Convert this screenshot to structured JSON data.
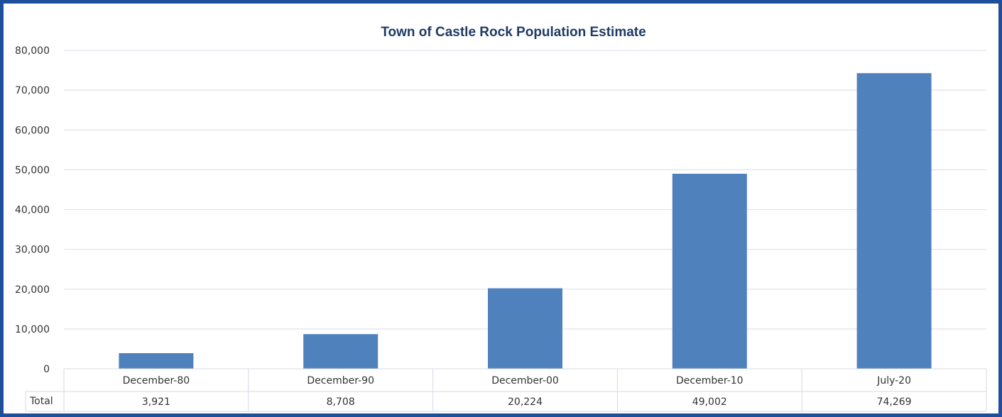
{
  "chart_data": {
    "type": "bar",
    "title": "Town of Castle Rock Population Estimate",
    "categories": [
      "December-80",
      "December-90",
      "December-00",
      "December-10",
      "July-20"
    ],
    "series": [
      {
        "name": "Total",
        "values": [
          3921,
          8708,
          20224,
          49002,
          74269
        ]
      }
    ],
    "data_table": {
      "row_label": "Total",
      "values": [
        "3,921",
        "8,708",
        "20,224",
        "49,002",
        "74,269"
      ]
    },
    "ylim": [
      0,
      80000
    ],
    "yticks": [
      {
        "value": 0,
        "label": "0"
      },
      {
        "value": 10000,
        "label": "10,000"
      },
      {
        "value": 20000,
        "label": "20,000"
      },
      {
        "value": 30000,
        "label": "30,000"
      },
      {
        "value": 40000,
        "label": "40,000"
      },
      {
        "value": 50000,
        "label": "50,000"
      },
      {
        "value": 60000,
        "label": "60,000"
      },
      {
        "value": 70000,
        "label": "70,000"
      },
      {
        "value": 80000,
        "label": "80,000"
      }
    ],
    "grid": true,
    "bar_color": "#4f81bd"
  }
}
